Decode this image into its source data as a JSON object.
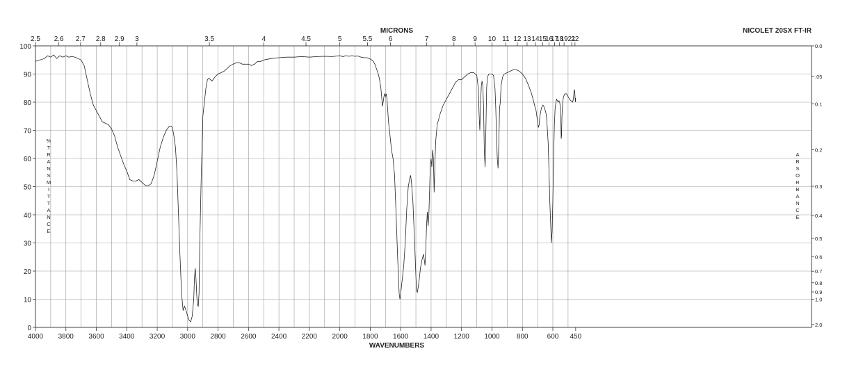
{
  "chart_data": {
    "type": "line",
    "instrument_label": "NICOLET 20SX FT-IR",
    "top_axis_title": "MICRONS",
    "bottom_axis_title": "WAVENUMBERS",
    "left_axis_title": "% TRANSMITTANCE",
    "right_axis_title": "ABSORBANCE",
    "xlim": [
      4000,
      450
    ],
    "ylim": [
      0,
      100
    ],
    "x_scale": "wavenumber, 2x compressed below 2000",
    "grid": true,
    "x_ticks": [
      4000,
      3800,
      3600,
      3400,
      3200,
      3000,
      2800,
      2600,
      2400,
      2200,
      2000,
      1800,
      1600,
      1400,
      1200,
      1000,
      800,
      600,
      450
    ],
    "y_ticks": [
      0,
      10,
      20,
      30,
      40,
      50,
      60,
      70,
      80,
      90,
      100
    ],
    "micron_ticks": [
      {
        "label": "2.5",
        "value": 2.5
      },
      {
        "label": "2.6",
        "value": 2.6
      },
      {
        "label": "2.7",
        "value": 2.7
      },
      {
        "label": "2.8",
        "value": 2.8
      },
      {
        "label": "2.9",
        "value": 2.9
      },
      {
        "label": "3",
        "value": 3.0
      },
      {
        "label": "3.5",
        "value": 3.5
      },
      {
        "label": "4",
        "value": 4.0
      },
      {
        "label": "4.5",
        "value": 4.5
      },
      {
        "label": "5",
        "value": 5.0
      },
      {
        "label": "5.5",
        "value": 5.5
      },
      {
        "label": "6",
        "value": 6.0
      },
      {
        "label": "7",
        "value": 7.0
      },
      {
        "label": "8",
        "value": 8.0
      },
      {
        "label": "9",
        "value": 9.0
      },
      {
        "label": "10",
        "value": 10.0
      },
      {
        "label": "11",
        "value": 11.0
      },
      {
        "label": "12",
        "value": 12.0
      },
      {
        "label": "13",
        "value": 13.0
      },
      {
        "label": "14",
        "value": 14.0
      },
      {
        "label": "15",
        "value": 15.0
      },
      {
        "label": "16",
        "value": 16.0
      },
      {
        "label": "17",
        "value": 17.0
      },
      {
        "label": "18",
        "value": 18.0
      },
      {
        "label": "19",
        "value": 19.0
      },
      {
        "label": "21",
        "value": 21.0
      },
      {
        "label": "22",
        "value": 22.0
      }
    ],
    "absorbance_ticks": [
      {
        "label": "0.0",
        "value": 0.0
      },
      {
        "label": ".05",
        "value": 0.05
      },
      {
        "label": "0.1",
        "value": 0.1
      },
      {
        "label": "0.2",
        "value": 0.2
      },
      {
        "label": "0.3",
        "value": 0.3
      },
      {
        "label": "0.4",
        "value": 0.4
      },
      {
        "label": "0.5",
        "value": 0.5
      },
      {
        "label": "0.6",
        "value": 0.6
      },
      {
        "label": "0.7",
        "value": 0.7
      },
      {
        "label": "0.8",
        "value": 0.8
      },
      {
        "label": "0.9",
        "value": 0.9
      },
      {
        "label": "1.0",
        "value": 1.0
      },
      {
        "label": "2.0",
        "value": 2.0
      }
    ],
    "series": [
      {
        "points": [
          [
            4000,
            94.5
          ],
          [
            3940,
            95.5
          ],
          [
            3920,
            96.5
          ],
          [
            3900,
            96
          ],
          [
            3880,
            96.8
          ],
          [
            3860,
            95.5
          ],
          [
            3840,
            96.5
          ],
          [
            3820,
            96
          ],
          [
            3800,
            96.5
          ],
          [
            3780,
            96
          ],
          [
            3760,
            96.2
          ],
          [
            3740,
            96
          ],
          [
            3720,
            95.5
          ],
          [
            3700,
            95
          ],
          [
            3680,
            93
          ],
          [
            3660,
            88
          ],
          [
            3640,
            83
          ],
          [
            3620,
            79
          ],
          [
            3600,
            77
          ],
          [
            3580,
            75
          ],
          [
            3560,
            73
          ],
          [
            3540,
            72.5
          ],
          [
            3520,
            72
          ],
          [
            3500,
            70.5
          ],
          [
            3480,
            68
          ],
          [
            3460,
            64
          ],
          [
            3440,
            61
          ],
          [
            3420,
            58
          ],
          [
            3400,
            55.5
          ],
          [
            3380,
            52.5
          ],
          [
            3360,
            52
          ],
          [
            3340,
            52
          ],
          [
            3320,
            52.5
          ],
          [
            3300,
            51.5
          ],
          [
            3280,
            50.5
          ],
          [
            3260,
            50.3
          ],
          [
            3240,
            51
          ],
          [
            3220,
            54
          ],
          [
            3200,
            59
          ],
          [
            3180,
            64
          ],
          [
            3160,
            67.5
          ],
          [
            3140,
            70
          ],
          [
            3120,
            71.5
          ],
          [
            3110,
            71.5
          ],
          [
            3100,
            71
          ],
          [
            3090,
            68
          ],
          [
            3080,
            64
          ],
          [
            3070,
            55
          ],
          [
            3060,
            40
          ],
          [
            3050,
            25
          ],
          [
            3040,
            12
          ],
          [
            3030,
            6
          ],
          [
            3020,
            7.5
          ],
          [
            3010,
            6
          ],
          [
            3000,
            4
          ],
          [
            2990,
            2.5
          ],
          [
            2980,
            2
          ],
          [
            2970,
            4
          ],
          [
            2960,
            10
          ],
          [
            2955,
            18
          ],
          [
            2950,
            21
          ],
          [
            2945,
            17
          ],
          [
            2940,
            11
          ],
          [
            2935,
            8
          ],
          [
            2930,
            7.5
          ],
          [
            2925,
            12
          ],
          [
            2920,
            30
          ],
          [
            2910,
            55
          ],
          [
            2900,
            75
          ],
          [
            2880,
            85
          ],
          [
            2870,
            88
          ],
          [
            2860,
            88.5
          ],
          [
            2840,
            87.5
          ],
          [
            2820,
            89
          ],
          [
            2800,
            90
          ],
          [
            2780,
            90.5
          ],
          [
            2760,
            91
          ],
          [
            2740,
            92
          ],
          [
            2720,
            93
          ],
          [
            2700,
            93.5
          ],
          [
            2680,
            94
          ],
          [
            2660,
            94
          ],
          [
            2640,
            93.5
          ],
          [
            2620,
            93.5
          ],
          [
            2600,
            93.5
          ],
          [
            2580,
            93
          ],
          [
            2560,
            93.5
          ],
          [
            2540,
            94.5
          ],
          [
            2520,
            94.5
          ],
          [
            2500,
            95
          ],
          [
            2450,
            95.5
          ],
          [
            2400,
            95.8
          ],
          [
            2350,
            96
          ],
          [
            2300,
            96
          ],
          [
            2250,
            96.2
          ],
          [
            2200,
            96
          ],
          [
            2150,
            96.2
          ],
          [
            2100,
            96.3
          ],
          [
            2050,
            96.2
          ],
          [
            2000,
            96.5
          ],
          [
            1980,
            96.2
          ],
          [
            1960,
            96.5
          ],
          [
            1940,
            96.3
          ],
          [
            1920,
            96.5
          ],
          [
            1900,
            96.3
          ],
          [
            1880,
            96.4
          ],
          [
            1860,
            96
          ],
          [
            1840,
            95.8
          ],
          [
            1820,
            95.8
          ],
          [
            1800,
            95.3
          ],
          [
            1790,
            95
          ],
          [
            1780,
            94.5
          ],
          [
            1770,
            93.5
          ],
          [
            1760,
            92
          ],
          [
            1750,
            90.5
          ],
          [
            1740,
            88.5
          ],
          [
            1730,
            85
          ],
          [
            1725,
            82
          ],
          [
            1720,
            78.5
          ],
          [
            1715,
            80
          ],
          [
            1710,
            82
          ],
          [
            1705,
            83
          ],
          [
            1700,
            82
          ],
          [
            1695,
            83
          ],
          [
            1690,
            81
          ],
          [
            1685,
            77
          ],
          [
            1680,
            73
          ],
          [
            1670,
            68
          ],
          [
            1660,
            63
          ],
          [
            1650,
            60
          ],
          [
            1640,
            54
          ],
          [
            1630,
            40
          ],
          [
            1620,
            25
          ],
          [
            1610,
            12
          ],
          [
            1605,
            10
          ],
          [
            1600,
            12
          ],
          [
            1590,
            17
          ],
          [
            1580,
            22
          ],
          [
            1570,
            30
          ],
          [
            1560,
            42
          ],
          [
            1550,
            50
          ],
          [
            1540,
            53
          ],
          [
            1535,
            54
          ],
          [
            1530,
            52
          ],
          [
            1520,
            45
          ],
          [
            1510,
            32
          ],
          [
            1500,
            18
          ],
          [
            1495,
            13
          ],
          [
            1490,
            12.5
          ],
          [
            1480,
            16
          ],
          [
            1470,
            21
          ],
          [
            1460,
            24
          ],
          [
            1450,
            26
          ],
          [
            1445,
            24
          ],
          [
            1440,
            22
          ],
          [
            1435,
            28
          ],
          [
            1430,
            36
          ],
          [
            1425,
            41
          ],
          [
            1420,
            36
          ],
          [
            1415,
            40
          ],
          [
            1410,
            49
          ],
          [
            1405,
            58
          ],
          [
            1400,
            60
          ],
          [
            1395,
            57
          ],
          [
            1390,
            63
          ],
          [
            1385,
            60
          ],
          [
            1380,
            48
          ],
          [
            1375,
            58
          ],
          [
            1370,
            66
          ],
          [
            1360,
            72
          ],
          [
            1350,
            74
          ],
          [
            1340,
            76
          ],
          [
            1320,
            79
          ],
          [
            1300,
            81
          ],
          [
            1280,
            83
          ],
          [
            1260,
            85
          ],
          [
            1240,
            87
          ],
          [
            1220,
            88
          ],
          [
            1200,
            88
          ],
          [
            1180,
            89
          ],
          [
            1160,
            90
          ],
          [
            1140,
            90.5
          ],
          [
            1120,
            90.5
          ],
          [
            1100,
            89.5
          ],
          [
            1090,
            85
          ],
          [
            1085,
            76
          ],
          [
            1080,
            70
          ],
          [
            1075,
            80
          ],
          [
            1070,
            86
          ],
          [
            1065,
            87.5
          ],
          [
            1060,
            86
          ],
          [
            1055,
            78
          ],
          [
            1050,
            62
          ],
          [
            1045,
            57
          ],
          [
            1040,
            70
          ],
          [
            1035,
            85
          ],
          [
            1030,
            89
          ],
          [
            1020,
            90
          ],
          [
            1000,
            90
          ],
          [
            990,
            89.5
          ],
          [
            980,
            85
          ],
          [
            975,
            78
          ],
          [
            970,
            68
          ],
          [
            965,
            60
          ],
          [
            960,
            56.5
          ],
          [
            955,
            65
          ],
          [
            950,
            78
          ],
          [
            945,
            80
          ],
          [
            940,
            86
          ],
          [
            930,
            89
          ],
          [
            920,
            90
          ],
          [
            900,
            90.5
          ],
          [
            880,
            91
          ],
          [
            860,
            91.5
          ],
          [
            840,
            91.5
          ],
          [
            820,
            91
          ],
          [
            800,
            90
          ],
          [
            780,
            88.5
          ],
          [
            760,
            86
          ],
          [
            740,
            83
          ],
          [
            730,
            81
          ],
          [
            720,
            79
          ],
          [
            710,
            77
          ],
          [
            700,
            73
          ],
          [
            695,
            71
          ],
          [
            690,
            72
          ],
          [
            685,
            75
          ],
          [
            675,
            78
          ],
          [
            665,
            79
          ],
          [
            655,
            78
          ],
          [
            645,
            76
          ],
          [
            640,
            74
          ],
          [
            630,
            65
          ],
          [
            625,
            55
          ],
          [
            620,
            45
          ],
          [
            615,
            38
          ],
          [
            612,
            33
          ],
          [
            610,
            30
          ],
          [
            605,
            34
          ],
          [
            600,
            45
          ],
          [
            595,
            60
          ],
          [
            590,
            72
          ],
          [
            585,
            78
          ],
          [
            580,
            80
          ],
          [
            575,
            81
          ],
          [
            570,
            80.5
          ],
          [
            565,
            80
          ],
          [
            560,
            80.5
          ],
          [
            555,
            80
          ],
          [
            550,
            78
          ],
          [
            547,
            73
          ],
          [
            545,
            67
          ],
          [
            543,
            68
          ],
          [
            540,
            75
          ],
          [
            535,
            80
          ],
          [
            530,
            82
          ],
          [
            520,
            83
          ],
          [
            510,
            83
          ],
          [
            500,
            82
          ],
          [
            490,
            81
          ],
          [
            480,
            80.5
          ],
          [
            470,
            80
          ],
          [
            465,
            81
          ],
          [
            462,
            83
          ],
          [
            460,
            84.5
          ],
          [
            457,
            84
          ],
          [
            455,
            83
          ],
          [
            452,
            80
          ],
          [
            450,
            81.5
          ]
        ]
      }
    ]
  }
}
